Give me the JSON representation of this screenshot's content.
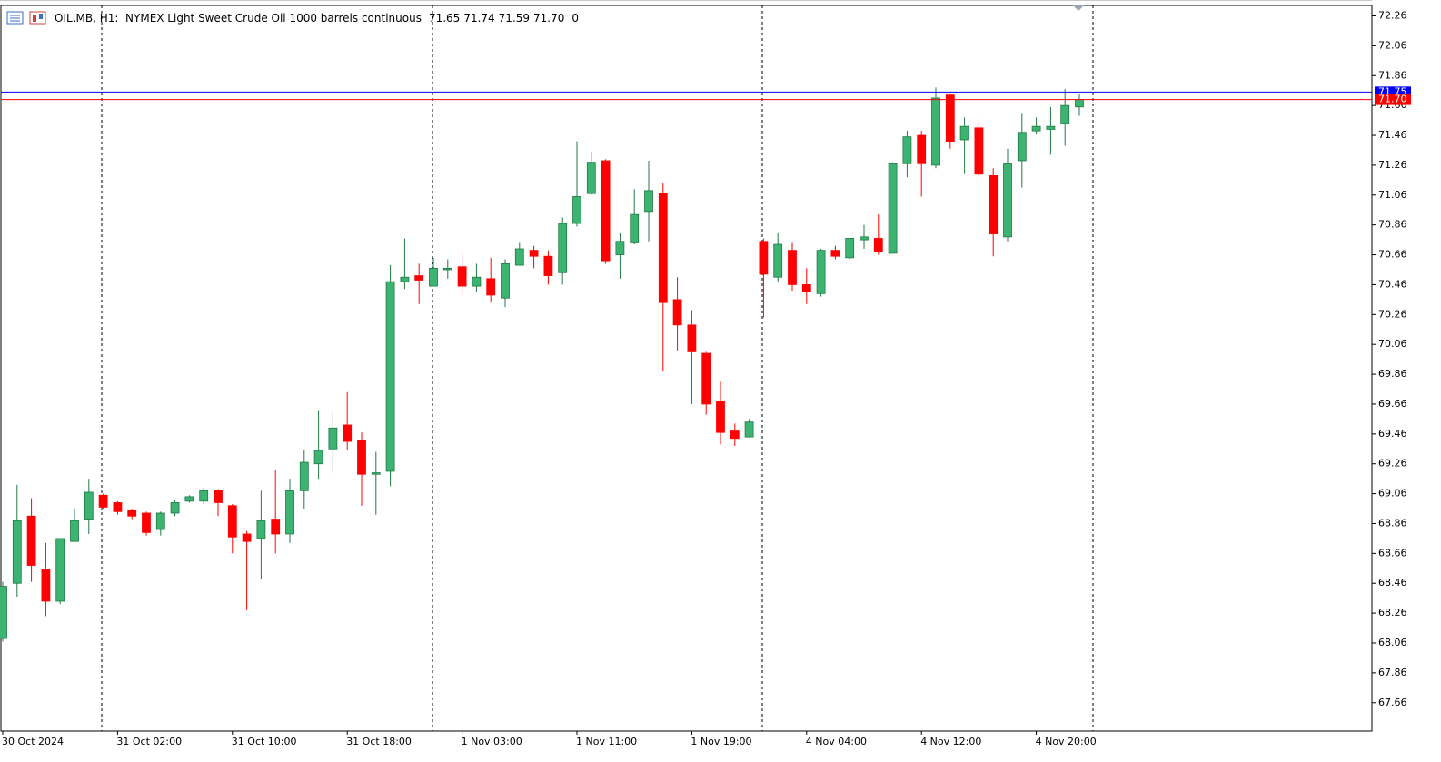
{
  "chart_data": {
    "type": "candlestick",
    "title": "OIL.MB, H1:  NYMEX Light Sweet Crude Oil 1000 barrels continuous",
    "quote": [
      71.65,
      71.74,
      71.59,
      {
        "value": 71.7,
        "label": "71.70"
      }
    ],
    "spread": 0,
    "categories": [
      "30 Oct 2024",
      null,
      null,
      null,
      null,
      null,
      null,
      null,
      "31 Oct 02:00",
      null,
      null,
      null,
      null,
      null,
      null,
      null,
      "31 Oct 10:00",
      null,
      null,
      null,
      null,
      null,
      null,
      null,
      "31 Oct 18:00",
      null,
      null,
      null,
      null,
      null,
      null,
      null,
      "1 Nov 03:00",
      null,
      null,
      null,
      null,
      null,
      null,
      null,
      "1 Nov 11:00",
      null,
      null,
      null,
      null,
      null,
      null,
      null,
      "1 Nov 19:00",
      null,
      null,
      null,
      null,
      null,
      null,
      null,
      "4 Nov 04:00",
      null,
      null,
      null,
      null,
      null,
      null,
      null,
      "4 Nov 12:00",
      null,
      null,
      null,
      null,
      null,
      null,
      null,
      "4 Nov 20:00",
      null,
      null,
      null
    ],
    "open": [
      68.09,
      68.46,
      68.91,
      68.55,
      68.34,
      68.74,
      68.89,
      69.05,
      69.0,
      68.95,
      68.93,
      68.82,
      68.93,
      69.01,
      69.01,
      69.08,
      68.98,
      68.79,
      68.76,
      68.89,
      68.79,
      69.08,
      69.26,
      69.36,
      69.52,
      69.42,
      69.19,
      69.21,
      70.48,
      70.52,
      70.45,
      70.56,
      70.58,
      70.45,
      70.5,
      70.37,
      70.59,
      70.69,
      70.65,
      70.54,
      70.87,
      71.07,
      71.29,
      70.66,
      70.74,
      70.95,
      71.07,
      70.36,
      70.19,
      70.0,
      69.68,
      69.48,
      69.44,
      70.75,
      70.51,
      70.69,
      70.46,
      70.4,
      70.69,
      70.64,
      70.76,
      70.77,
      70.67,
      71.27,
      71.46,
      71.26,
      71.73,
      71.43,
      71.51,
      71.19,
      70.78,
      71.29,
      71.49,
      71.5,
      71.54,
      71.65
    ],
    "high": [
      68.47,
      69.12,
      69.03,
      68.73,
      68.76,
      68.96,
      69.16,
      69.06,
      69.01,
      68.96,
      68.94,
      68.94,
      69.02,
      69.05,
      69.1,
      69.09,
      68.99,
      68.81,
      69.08,
      69.22,
      69.16,
      69.35,
      69.62,
      69.61,
      69.74,
      69.47,
      69.34,
      70.59,
      70.77,
      70.6,
      70.64,
      70.63,
      70.68,
      70.6,
      70.64,
      70.63,
      70.74,
      70.72,
      70.69,
      70.91,
      71.42,
      71.35,
      71.3,
      70.81,
      71.1,
      71.29,
      71.14,
      70.51,
      70.29,
      70.01,
      69.81,
      69.53,
      69.56,
      70.77,
      70.81,
      70.74,
      70.57,
      70.7,
      70.72,
      70.77,
      70.86,
      70.93,
      71.28,
      71.49,
      71.49,
      71.78,
      71.74,
      71.58,
      71.57,
      71.24,
      71.37,
      71.61,
      71.58,
      71.65,
      71.77,
      71.74
    ],
    "low": [
      68.07,
      68.37,
      68.47,
      68.24,
      68.32,
      68.74,
      68.79,
      68.96,
      68.92,
      68.89,
      68.78,
      68.78,
      68.91,
      69.0,
      68.99,
      68.91,
      68.66,
      68.28,
      68.49,
      68.66,
      68.73,
      68.96,
      69.16,
      69.2,
      69.35,
      68.98,
      68.92,
      69.11,
      70.43,
      70.33,
      70.45,
      70.5,
      70.4,
      70.41,
      70.34,
      70.31,
      70.59,
      70.57,
      70.46,
      70.46,
      70.85,
      71.06,
      70.6,
      70.5,
      70.73,
      70.75,
      69.88,
      70.02,
      69.66,
      69.59,
      69.39,
      69.38,
      69.44,
      70.24,
      70.48,
      70.42,
      70.33,
      70.38,
      70.63,
      70.63,
      70.7,
      70.66,
      70.67,
      71.18,
      71.05,
      71.24,
      71.37,
      71.2,
      71.18,
      70.65,
      70.75,
      71.11,
      71.47,
      71.33,
      71.39,
      71.59
    ],
    "close": [
      68.44,
      68.88,
      68.58,
      68.34,
      68.76,
      68.88,
      69.07,
      68.97,
      68.94,
      68.91,
      68.8,
      68.93,
      69.0,
      69.04,
      69.08,
      69.0,
      68.77,
      68.74,
      68.88,
      68.79,
      69.08,
      69.27,
      69.35,
      69.5,
      69.41,
      69.19,
      69.2,
      70.48,
      70.51,
      70.49,
      70.57,
      70.57,
      70.45,
      70.51,
      70.39,
      70.6,
      70.7,
      70.65,
      70.52,
      70.87,
      71.05,
      71.28,
      70.62,
      70.75,
      70.93,
      71.09,
      70.34,
      70.19,
      70.01,
      69.66,
      69.47,
      69.43,
      69.54,
      70.53,
      70.73,
      70.46,
      70.41,
      70.69,
      70.65,
      70.77,
      70.78,
      70.68,
      71.27,
      71.45,
      71.27,
      71.71,
      71.42,
      71.52,
      71.2,
      70.8,
      71.27,
      71.48,
      71.52,
      71.52,
      71.66,
      71.7
    ],
    "up_color": "#3cb371",
    "down_color": "#ff0000",
    "ylim": [
      67.47,
      72.33
    ],
    "yticks": [
      67.66,
      67.86,
      68.06,
      68.26,
      68.46,
      68.66,
      68.86,
      69.06,
      69.26,
      69.46,
      69.66,
      69.86,
      70.06,
      70.26,
      70.46,
      70.66,
      70.86,
      71.06,
      71.26,
      71.46,
      71.66,
      71.86,
      72.06,
      72.26
    ],
    "price_lines": [
      {
        "value": 71.75,
        "color": "#0000ff"
      },
      {
        "value": 71.7,
        "label": "71.70",
        "color": "#ff0000"
      }
    ]
  }
}
